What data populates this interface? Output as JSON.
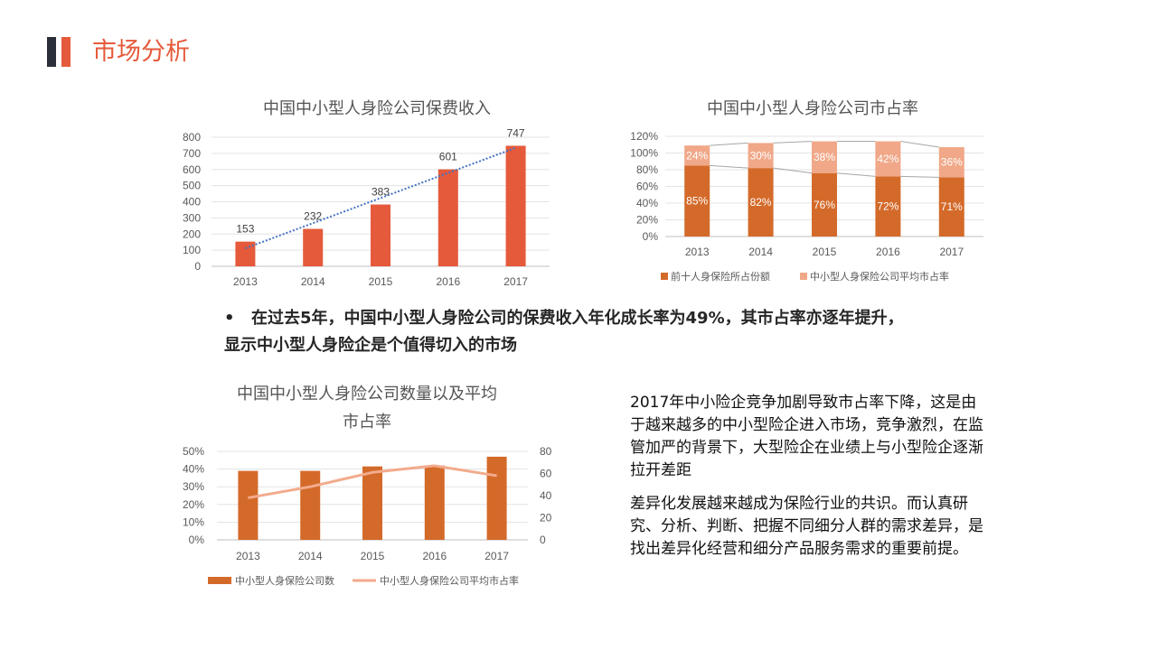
{
  "page": {
    "title": "市场分析",
    "bullet": "在过去5年，中国中小型人身险公司的保费收入年化成长率为49%，其市占率亦逐年提升，显示中小型人身险企是个值得切入的市场",
    "paragraph1": "2017年中小险企竞争加剧导致市占率下降，这是由于越来越多的中小型险企进入市场，竞争激烈，在监管加严的背景下，大型险企在业绩上与小型险企逐渐拉开差距",
    "paragraph2": "差异化发展越来越成为保险行业的共识。而认真研究、分析、判断、把握不同细分人群的需求差异，是找出差异化经营和细分产品服务需求的重要前提。"
  },
  "colors": {
    "accent": "#e55a3b",
    "dark": "#2b2f3a",
    "bar_dark_orange": "#d46a2a",
    "bar_light_orange": "#f0a888",
    "line_peach": "#f2ab8c",
    "trend_blue": "#4472c4"
  },
  "chart_data": [
    {
      "type": "bar",
      "title": "中国中小型人身险公司保费收入",
      "categories": [
        "2013",
        "2014",
        "2015",
        "2016",
        "2017"
      ],
      "values": [
        153,
        232,
        383,
        601,
        747
      ],
      "data_labels": [
        "153",
        "232",
        "383",
        "601",
        "747"
      ],
      "ylim": [
        0,
        800
      ],
      "yticks": [
        "0",
        "100",
        "200",
        "300",
        "400",
        "500",
        "600",
        "700",
        "800"
      ],
      "trendline": "linear dotted",
      "grid": true,
      "legend": "none"
    },
    {
      "type": "bar",
      "stacked": true,
      "title": "中国中小型人身险公司市占率",
      "categories": [
        "2013",
        "2014",
        "2015",
        "2016",
        "2017"
      ],
      "series": [
        {
          "name": "前十人身保险所占份额",
          "values": [
            85,
            82,
            76,
            72,
            71
          ],
          "labels": [
            "85%",
            "82%",
            "76%",
            "72%",
            "71%"
          ]
        },
        {
          "name": "中小型人身保险公司平均市占率",
          "values": [
            24,
            30,
            38,
            42,
            36
          ],
          "labels": [
            "24%",
            "30%",
            "38%",
            "42%",
            "36%"
          ]
        }
      ],
      "ylim": [
        0,
        120
      ],
      "yticks": [
        "0%",
        "20%",
        "40%",
        "60%",
        "80%",
        "100%",
        "120%"
      ],
      "series_lines": true,
      "grid": true,
      "legend": "bottom"
    },
    {
      "type": "bar",
      "combo": "bar-line",
      "title": "中国中小型人身险公司数量以及平均市占率",
      "categories": [
        "2013",
        "2014",
        "2015",
        "2016",
        "2017"
      ],
      "series": [
        {
          "name": "中小型人身保险公司数",
          "type": "bar",
          "axis": "left",
          "values": [
            0.39,
            0.39,
            0.415,
            0.42,
            0.47
          ]
        },
        {
          "name": "中小型人身保险公司平均市占率",
          "type": "line",
          "axis": "right",
          "values": [
            38,
            48,
            61,
            67,
            58
          ]
        }
      ],
      "ylim_left": [
        0,
        0.5
      ],
      "yticks_left": [
        "0%",
        "10%",
        "20%",
        "30%",
        "40%",
        "50%"
      ],
      "ylim_right": [
        0,
        80
      ],
      "yticks_right": [
        "0",
        "20",
        "40",
        "60",
        "80"
      ],
      "grid": true,
      "legend": "bottom"
    }
  ]
}
